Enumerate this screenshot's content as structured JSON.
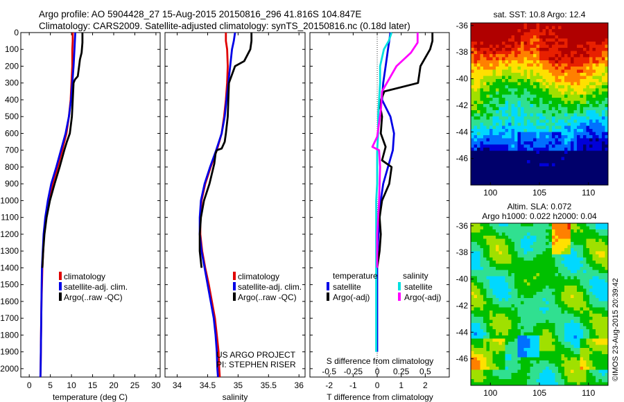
{
  "header": {
    "line1": "Argo profile: AO 5904428_27 15-Aug-2015 20150816_296 41.816S 104.847E",
    "line2": "Climatology: CARS2009. Satellite-adjusted climatology: synTS_20150816.nc (0.18d later)"
  },
  "colors": {
    "climatology": "#e00000",
    "satellite": "#0000e6",
    "argo": "#000000",
    "satellite_salinity": "#00e0e0",
    "argo_salinity": "#ff00ff"
  },
  "chart_data": [
    {
      "type": "line",
      "xlabel": "temperature (deg C)",
      "ylabel": "",
      "xlim": [
        -2,
        31
      ],
      "ylim": [
        2050,
        0
      ],
      "xticks": [
        0,
        5,
        10,
        15,
        20,
        25,
        30
      ],
      "yticks": [
        0,
        100,
        200,
        300,
        400,
        500,
        600,
        700,
        800,
        900,
        1000,
        1100,
        1200,
        1300,
        1400,
        1500,
        1600,
        1700,
        1800,
        1900,
        2000
      ],
      "series": [
        {
          "name": "climatology",
          "color": "#e00000",
          "x": [
            10.3,
            10.3,
            10.2,
            10.2,
            10.0,
            9.8,
            9.4,
            8.8,
            7.8,
            6.7,
            5.5,
            4.6,
            3.9,
            3.5,
            3.3,
            3.1,
            3.0,
            2.9,
            2.85,
            2.8,
            2.75,
            2.7,
            2.65
          ],
          "y": [
            0,
            50,
            100,
            200,
            300,
            400,
            500,
            600,
            700,
            800,
            900,
            1000,
            1100,
            1200,
            1300,
            1400,
            1500,
            1600,
            1700,
            1800,
            1900,
            2000,
            2050
          ]
        },
        {
          "name": "satellite-adj. clim.",
          "color": "#0000e6",
          "x": [
            10.9,
            10.8,
            10.7,
            10.5,
            10.2,
            9.9,
            9.4,
            8.6,
            7.5,
            6.4,
            5.2,
            4.4,
            3.8,
            3.4,
            3.2,
            3.0,
            2.95,
            2.9,
            2.85,
            2.8,
            2.75,
            2.7,
            2.65
          ],
          "y": [
            0,
            50,
            100,
            200,
            300,
            400,
            500,
            600,
            700,
            800,
            900,
            1000,
            1100,
            1200,
            1300,
            1400,
            1500,
            1600,
            1700,
            1800,
            1900,
            2000,
            2050
          ]
        },
        {
          "name": "Argo(..raw -QC)",
          "color": "#000000",
          "x": [
            12.6,
            12.6,
            12.4,
            12.0,
            11.8,
            11.5,
            10.8,
            10.5,
            10.3,
            10.1,
            9.6,
            8.9,
            8.3,
            7.2,
            6.0,
            4.9,
            4.1,
            3.6,
            3.3,
            3.1
          ],
          "y": [
            0,
            60,
            120,
            160,
            200,
            260,
            280,
            300,
            400,
            500,
            600,
            650,
            700,
            800,
            900,
            1000,
            1100,
            1200,
            1300,
            1400
          ]
        }
      ],
      "legend": [
        "climatology",
        "satellite-adj. clim.",
        "Argo(..raw -QC)"
      ],
      "legend_position": "lower-center"
    },
    {
      "type": "line",
      "xlabel": "salinity",
      "ylabel": "",
      "xlim": [
        33.8,
        36.1
      ],
      "ylim": [
        2050,
        0
      ],
      "xticks": [
        34,
        34.5,
        35,
        35.5,
        36
      ],
      "xticklabels": [
        "34",
        "34.5",
        "35",
        "35.5",
        "36"
      ],
      "series": [
        {
          "name": "climatology",
          "color": "#e00000",
          "x": [
            34.8,
            34.8,
            34.82,
            34.83,
            34.82,
            34.8,
            34.77,
            34.73,
            34.65,
            34.55,
            34.46,
            34.4,
            34.38,
            34.38,
            34.41,
            34.46,
            34.52,
            34.57,
            34.62,
            34.65,
            34.68,
            34.69,
            34.7
          ],
          "y": [
            0,
            50,
            100,
            200,
            300,
            400,
            500,
            600,
            700,
            800,
            900,
            1000,
            1100,
            1200,
            1300,
            1400,
            1500,
            1600,
            1700,
            1800,
            1900,
            2000,
            2050
          ]
        },
        {
          "name": "satellite-adj. clim.",
          "color": "#0000e6",
          "x": [
            34.95,
            34.93,
            34.9,
            34.87,
            34.84,
            34.81,
            34.78,
            34.73,
            34.64,
            34.54,
            34.45,
            34.39,
            34.37,
            34.37,
            34.4,
            34.45,
            34.5,
            34.55,
            34.6,
            34.63,
            34.65,
            34.66,
            34.67
          ],
          "y": [
            0,
            50,
            100,
            200,
            300,
            400,
            500,
            600,
            700,
            800,
            900,
            1000,
            1100,
            1200,
            1300,
            1400,
            1500,
            1600,
            1700,
            1800,
            1900,
            2000,
            2050
          ]
        },
        {
          "name": "Argo(..raw -QC)",
          "color": "#000000",
          "x": [
            35.22,
            35.22,
            35.2,
            35.1,
            34.95,
            34.85,
            34.84,
            34.83,
            34.8,
            34.78,
            34.73,
            34.65,
            34.63,
            34.61,
            34.53,
            34.44,
            34.39,
            34.37,
            34.37,
            34.4
          ],
          "y": [
            0,
            50,
            100,
            170,
            200,
            300,
            400,
            500,
            600,
            650,
            690,
            700,
            720,
            780,
            900,
            1000,
            1100,
            1200,
            1300,
            1400
          ]
        }
      ],
      "legend": [
        "climatology",
        "satellite-adj. clim.",
        "Argo(..raw -QC)"
      ],
      "legend_position": "lower-center",
      "annotation": [
        "US ARGO PROJECT",
        "PI: STEPHEN RISER"
      ]
    },
    {
      "type": "line",
      "xlabel": "T difference from climatology",
      "title_top_axis": "S difference from climatology",
      "xlim": [
        -2.8,
        3.0
      ],
      "ylim": [
        2050,
        0
      ],
      "xticks": [
        -2,
        -1,
        0,
        1,
        2
      ],
      "secondary_xticks": [
        -0.5,
        -0.25,
        0,
        0.25,
        0.5
      ],
      "secondary_xticklabels": [
        "-0.5",
        "-0.25",
        "0",
        "0.25",
        "0.5"
      ],
      "series": [
        {
          "name": "temperature satellite",
          "color": "#0000e6",
          "x": [
            0.55,
            0.5,
            0.45,
            0.35,
            0.25,
            0.2,
            0.55,
            0.7,
            0.65,
            0.45,
            0.25,
            0.15,
            0.1,
            0.05,
            0.02,
            0.0,
            0.0,
            0.0,
            0.0,
            0.0,
            0.0
          ],
          "y": [
            0,
            50,
            100,
            200,
            300,
            400,
            500,
            600,
            700,
            800,
            900,
            1000,
            1100,
            1200,
            1300,
            1400,
            1500,
            1600,
            1700,
            1800,
            1900
          ]
        },
        {
          "name": "temperature Argo(-adj)",
          "color": "#000000",
          "x": [
            2.3,
            2.3,
            2.2,
            1.8,
            1.7,
            0.3,
            0.1,
            0.2,
            0.15,
            0.35,
            0.2,
            0.6,
            0.5,
            0.2,
            0.1,
            0.15,
            0.1,
            0.0
          ],
          "y": [
            0,
            50,
            100,
            200,
            300,
            350,
            420,
            500,
            600,
            680,
            760,
            800,
            900,
            1000,
            1100,
            1200,
            1300,
            1400
          ]
        },
        {
          "name": "salinity satellite",
          "color": "#00e0e0",
          "x": [
            0.15,
            0.12,
            0.07,
            0.03,
            0.03,
            0.02,
            0.01,
            0.01,
            0.0,
            0.0,
            0.0,
            -0.01,
            -0.01,
            -0.01,
            -0.01,
            -0.01,
            -0.01,
            -0.01,
            -0.01,
            -0.01,
            -0.01
          ],
          "y": [
            0,
            50,
            100,
            200,
            300,
            400,
            500,
            600,
            700,
            800,
            900,
            1000,
            1100,
            1200,
            1300,
            1400,
            1500,
            1600,
            1700,
            1800,
            1900
          ]
        },
        {
          "name": "salinity Argo(-adj)",
          "color": "#ff00ff",
          "x": [
            0.42,
            0.42,
            0.35,
            0.2,
            0.12,
            0.05,
            0.04,
            0.0,
            -0.05,
            0.02,
            0.03,
            0.02,
            0.0,
            0.0
          ],
          "y": [
            0,
            60,
            120,
            200,
            280,
            350,
            450,
            620,
            680,
            700,
            800,
            1000,
            1200,
            1400
          ]
        }
      ],
      "legend_temperature_title": "temperature",
      "legend_salinity_title": "salinity",
      "legend_labels": {
        "satellite": "satellite",
        "argo": "Argo(-adj)"
      },
      "legend_position": "lower-center"
    },
    {
      "type": "heatmap",
      "title": "sat. SST: 10.8  Argo: 12.4",
      "xlim": [
        98,
        112
      ],
      "ylim": [
        -48,
        -35.8
      ],
      "xticks": [
        100,
        105,
        110
      ],
      "yticks": [
        -36,
        -38,
        -40,
        -42,
        -44,
        -46
      ],
      "colormap": [
        "#00006b",
        "#0000d8",
        "#0070ff",
        "#00d8ff",
        "#30e090",
        "#00c000",
        "#a0e000",
        "#ffe000",
        "#ff8000",
        "#e82000",
        "#b00000"
      ],
      "profile_marker": [
        104.847,
        -41.816
      ]
    },
    {
      "type": "heatmap",
      "title_lines": [
        "Altim. SLA: 0.072",
        "Argo h1000: 0.022  h2000: 0.04"
      ],
      "xlim": [
        98,
        112
      ],
      "ylim": [
        -48,
        -35.8
      ],
      "xticks": [
        100,
        105,
        110
      ],
      "yticks": [
        -36,
        -38,
        -40,
        -42,
        -44,
        -46
      ],
      "colormap": [
        "#0000d8",
        "#0070ff",
        "#00d8ff",
        "#30e090",
        "#00c000",
        "#a0e000",
        "#ffe000",
        "#ff8000",
        "#e82000"
      ]
    }
  ],
  "footer": {
    "credit": "©IMOS 23-Aug-2015 20:39:42"
  }
}
